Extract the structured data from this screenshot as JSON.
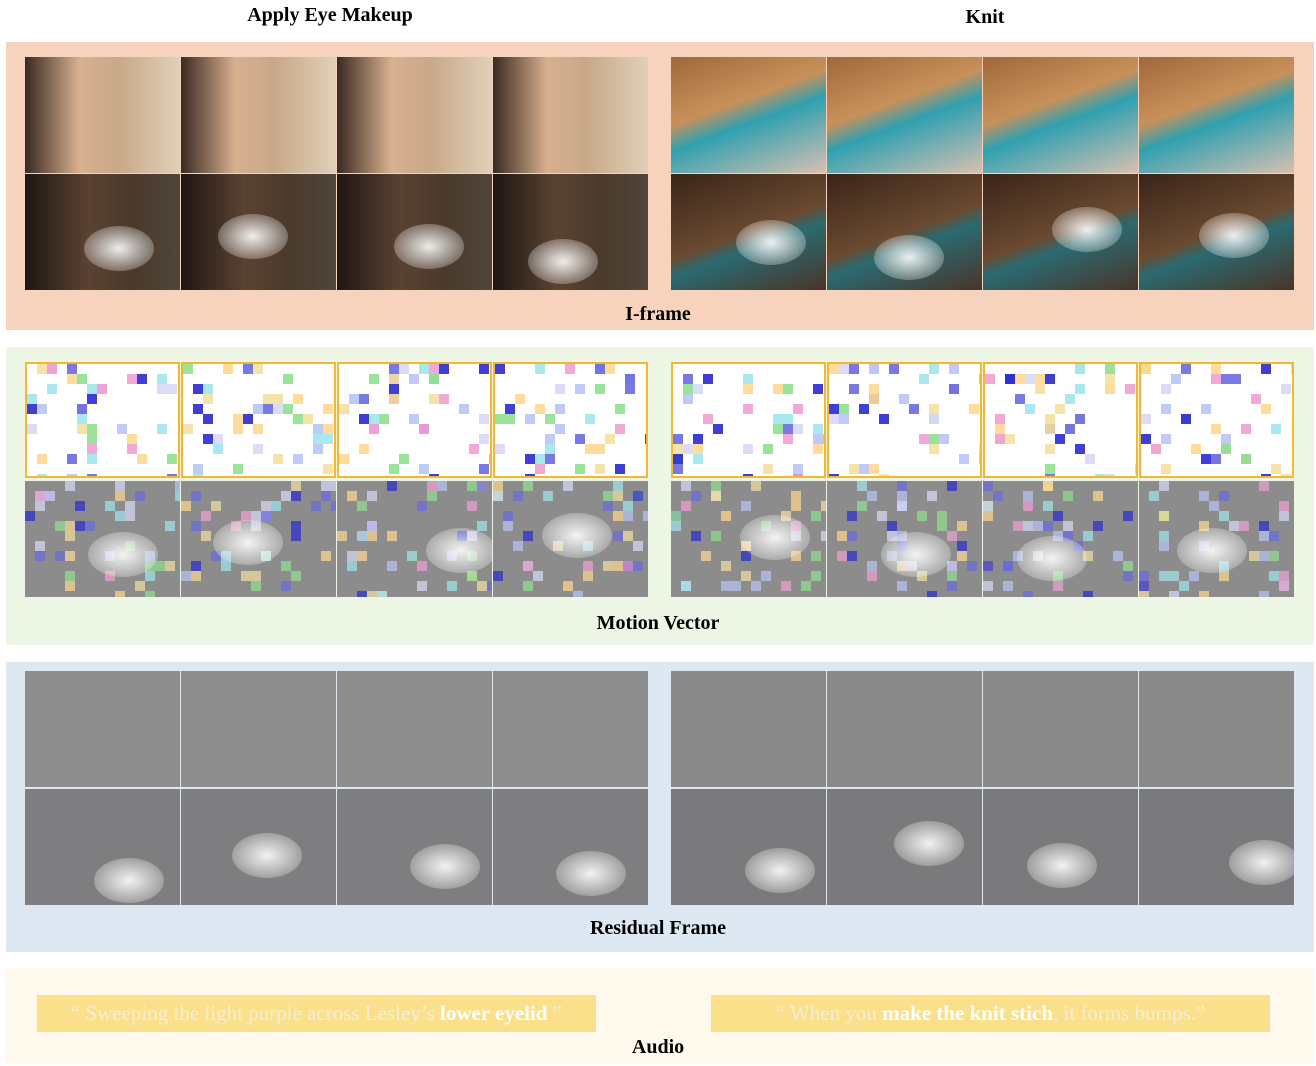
{
  "columns": [
    "Apply Eye Makeup",
    "Knit"
  ],
  "sections": [
    {
      "label": "I-frame"
    },
    {
      "label": "Motion Vector"
    },
    {
      "label": "Residual Frame"
    }
  ],
  "audio": {
    "label": "Audio",
    "captions": [
      {
        "parts": [
          {
            "text": "“ Sweeping the light purple across Lesley’s ",
            "bold": false
          },
          {
            "text": "lower eyelid",
            "bold": true
          },
          {
            "text": " ”",
            "bold": false
          }
        ]
      },
      {
        "parts": [
          {
            "text": "“ When you ",
            "bold": false
          },
          {
            "text": "make the knit stich",
            "bold": true
          },
          {
            "text": ", it forms bumps.”",
            "bold": false
          }
        ]
      }
    ]
  }
}
